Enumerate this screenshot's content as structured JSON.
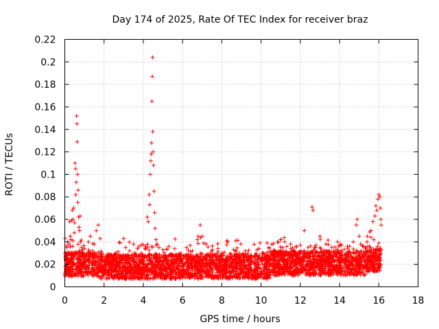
{
  "chart_data": {
    "type": "scatter",
    "title": "Day 174 of 2025, Rate Of TEC Index for receiver braz",
    "xlabel": "GPS time / hours",
    "ylabel": "ROTI / TECUs",
    "xlim": [
      0,
      18
    ],
    "ylim": [
      0,
      0.22
    ],
    "xticks": [
      "0",
      "2",
      "4",
      "6",
      "8",
      "10",
      "12",
      "14",
      "16",
      "18"
    ],
    "yticks": [
      "0",
      "0.02",
      "0.04",
      "0.06",
      "0.08",
      "0.1",
      "0.12",
      "0.14",
      "0.16",
      "0.18",
      "0.2",
      "0.22"
    ],
    "grid": true,
    "marker": "plus",
    "color": "#ff0000",
    "series": [
      {
        "points": [
          [
            0.05,
            0.027
          ],
          [
            0.08,
            0.012
          ],
          [
            0.1,
            0.035
          ],
          [
            0.12,
            0.022
          ],
          [
            0.15,
            0.04
          ],
          [
            0.18,
            0.016
          ],
          [
            0.2,
            0.031
          ],
          [
            0.22,
            0.038
          ],
          [
            0.25,
            0.058
          ],
          [
            0.28,
            0.045
          ],
          [
            0.3,
            0.042
          ],
          [
            0.33,
            0.025
          ],
          [
            0.35,
            0.059
          ],
          [
            0.38,
            0.068
          ],
          [
            0.4,
            0.036
          ],
          [
            0.42,
            0.06
          ],
          [
            0.45,
            0.07
          ],
          [
            0.48,
            0.048
          ],
          [
            0.5,
            0.057
          ],
          [
            0.52,
            0.11
          ],
          [
            0.55,
            0.105
          ],
          [
            0.56,
            0.082
          ],
          [
            0.58,
            0.093
          ],
          [
            0.6,
            0.152
          ],
          [
            0.62,
            0.145
          ],
          [
            0.63,
            0.129
          ],
          [
            0.65,
            0.1
          ],
          [
            0.66,
            0.075
          ],
          [
            0.68,
            0.086
          ],
          [
            0.7,
            0.062
          ],
          [
            0.72,
            0.053
          ],
          [
            0.75,
            0.05
          ],
          [
            0.78,
            0.063
          ],
          [
            0.8,
            0.04
          ],
          [
            0.85,
            0.035
          ],
          [
            0.9,
            0.03
          ],
          [
            0.95,
            0.026
          ],
          [
            1.0,
            0.034
          ],
          [
            1.1,
            0.028
          ],
          [
            1.2,
            0.04
          ],
          [
            1.3,
            0.045
          ],
          [
            1.4,
            0.032
          ],
          [
            1.5,
            0.038
          ],
          [
            1.6,
            0.05
          ],
          [
            1.7,
            0.055
          ],
          [
            1.8,
            0.043
          ],
          [
            1.9,
            0.03
          ],
          [
            2.0,
            0.024
          ],
          [
            2.2,
            0.028
          ],
          [
            2.4,
            0.025
          ],
          [
            2.6,
            0.03
          ],
          [
            2.8,
            0.027
          ],
          [
            3.0,
            0.043
          ],
          [
            3.1,
            0.035
          ],
          [
            3.3,
            0.032
          ],
          [
            3.5,
            0.038
          ],
          [
            3.7,
            0.034
          ],
          [
            3.9,
            0.03
          ],
          [
            4.1,
            0.036
          ],
          [
            4.2,
            0.062
          ],
          [
            4.25,
            0.058
          ],
          [
            4.3,
            0.082
          ],
          [
            4.32,
            0.073
          ],
          [
            4.35,
            0.1
          ],
          [
            4.38,
            0.112
          ],
          [
            4.4,
            0.118
          ],
          [
            4.42,
            0.128
          ],
          [
            4.44,
            0.165
          ],
          [
            4.46,
            0.187
          ],
          [
            4.47,
            0.204
          ],
          [
            4.48,
            0.138
          ],
          [
            4.5,
            0.12
          ],
          [
            4.52,
            0.108
          ],
          [
            4.55,
            0.085
          ],
          [
            4.58,
            0.066
          ],
          [
            4.6,
            0.052
          ],
          [
            4.65,
            0.042
          ],
          [
            4.7,
            0.038
          ],
          [
            4.8,
            0.035
          ],
          [
            5.0,
            0.033
          ],
          [
            5.3,
            0.036
          ],
          [
            5.6,
            0.034
          ],
          [
            5.9,
            0.03
          ],
          [
            6.2,
            0.035
          ],
          [
            6.5,
            0.032
          ],
          [
            6.8,
            0.045
          ],
          [
            6.9,
            0.055
          ],
          [
            7.0,
            0.045
          ],
          [
            7.2,
            0.038
          ],
          [
            7.5,
            0.032
          ],
          [
            7.8,
            0.034
          ],
          [
            8.0,
            0.03
          ],
          [
            8.3,
            0.04
          ],
          [
            8.6,
            0.033
          ],
          [
            8.9,
            0.03
          ],
          [
            9.2,
            0.032
          ],
          [
            9.5,
            0.028
          ],
          [
            9.8,
            0.033
          ],
          [
            10.1,
            0.03
          ],
          [
            10.4,
            0.035
          ],
          [
            10.7,
            0.032
          ],
          [
            11.0,
            0.042
          ],
          [
            11.2,
            0.04
          ],
          [
            11.5,
            0.038
          ],
          [
            11.8,
            0.036
          ],
          [
            12.0,
            0.037
          ],
          [
            12.2,
            0.05
          ],
          [
            12.4,
            0.035
          ],
          [
            12.6,
            0.071
          ],
          [
            12.65,
            0.068
          ],
          [
            12.8,
            0.037
          ],
          [
            13.0,
            0.045
          ],
          [
            13.3,
            0.038
          ],
          [
            13.6,
            0.035
          ],
          [
            13.9,
            0.04
          ],
          [
            14.1,
            0.037
          ],
          [
            14.4,
            0.036
          ],
          [
            14.7,
            0.04
          ],
          [
            14.85,
            0.055
          ],
          [
            14.9,
            0.06
          ],
          [
            15.0,
            0.045
          ],
          [
            15.2,
            0.036
          ],
          [
            15.4,
            0.04
          ],
          [
            15.6,
            0.05
          ],
          [
            15.7,
            0.058
          ],
          [
            15.8,
            0.063
          ],
          [
            15.85,
            0.072
          ],
          [
            15.9,
            0.068
          ],
          [
            15.95,
            0.078
          ],
          [
            16.0,
            0.082
          ],
          [
            16.05,
            0.08
          ],
          [
            16.08,
            0.07
          ],
          [
            16.1,
            0.06
          ],
          [
            16.12,
            0.055
          ]
        ]
      }
    ]
  }
}
